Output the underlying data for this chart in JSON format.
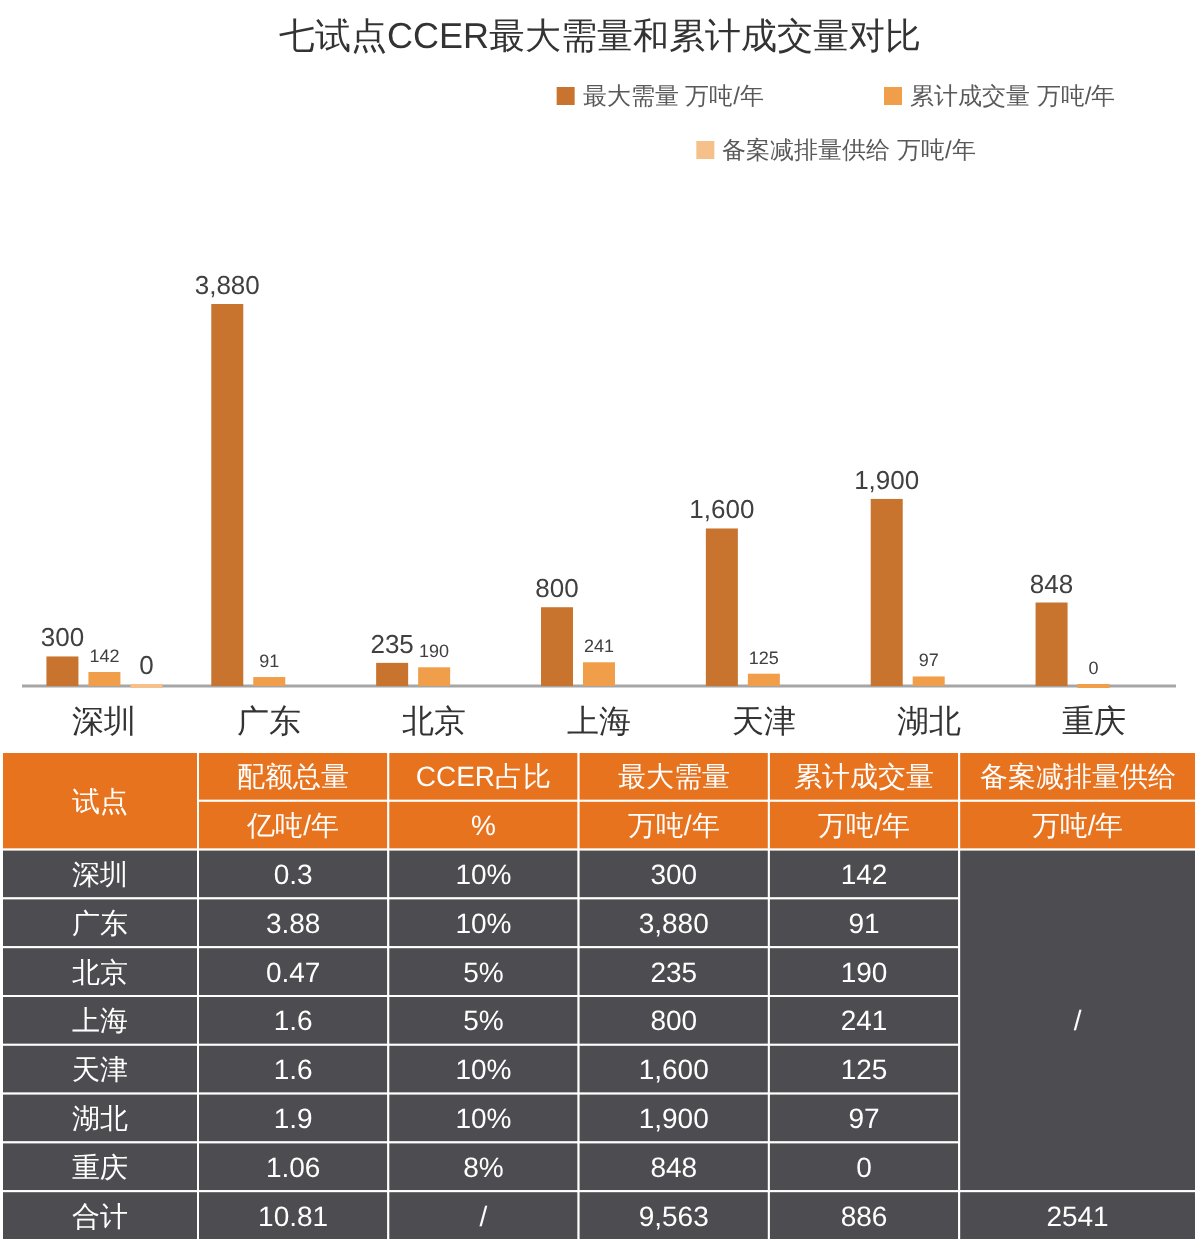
{
  "chart_data": [
    {
      "type": "bar",
      "title": "七试点CCER最大需量和累计成交量对比",
      "categories": [
        "深圳",
        "广东",
        "北京",
        "上海",
        "天津",
        "湖北",
        "重庆"
      ],
      "legend": "top right",
      "series": [
        {
          "name": "最大需量 万吨/年",
          "color": "#c8742e",
          "values": [
            300,
            3880,
            235,
            800,
            1600,
            1900,
            848
          ],
          "value_labels": [
            "300",
            "3,880",
            "235",
            "800",
            "1,600",
            "1,900",
            "848"
          ]
        },
        {
          "name": "累计成交量 万吨/年",
          "color": "#f09e4a",
          "values": [
            142,
            91,
            190,
            241,
            125,
            97,
            0
          ],
          "value_labels": [
            "142",
            "91",
            "190",
            "241",
            "125",
            "97",
            "0"
          ]
        },
        {
          "name": "备案减排量供给 万吨/年",
          "color": "#f5c08a",
          "values": [
            0,
            null,
            null,
            null,
            null,
            null,
            null
          ],
          "value_labels": [
            "0",
            null,
            null,
            null,
            null,
            null,
            null
          ]
        }
      ]
    },
    {
      "type": "other",
      "categories": [
        "试点",
        null,
        "深圳",
        "广东",
        "北京",
        "上海",
        "天津",
        "湖北",
        "重庆",
        "合计"
      ],
      "series": [
        {
          "values": [
            null,
            null,
            0.3,
            3.88,
            0.47,
            1.6,
            1.6,
            1.9,
            1.06,
            10.81
          ],
          "value_labels": [
            "配额总量",
            "亿吨/年",
            "0.3",
            "3.88",
            "0.47",
            "1.6",
            "1.6",
            "1.9",
            "1.06",
            "10.81"
          ]
        },
        {
          "values": [
            null,
            null,
            10,
            10,
            5,
            5,
            10,
            10,
            8,
            null
          ],
          "value_labels": [
            "CCER占比",
            "%",
            "10%",
            "10%",
            "5%",
            "5%",
            "10%",
            "10%",
            "8%",
            "/"
          ]
        },
        {
          "values": [
            null,
            null,
            300,
            3880,
            235,
            800,
            1600,
            1900,
            848,
            9563
          ],
          "value_labels": [
            "最大需量",
            "万吨/年",
            "300",
            "3,880",
            "235",
            "800",
            "1,600",
            "1,900",
            "848",
            "9,563"
          ]
        },
        {
          "values": [
            null,
            null,
            142,
            91,
            190,
            241,
            125,
            97,
            0,
            886
          ],
          "value_labels": [
            "累计成交量",
            "万吨/年",
            "142",
            "91",
            "190",
            "241",
            "125",
            "97",
            "0",
            "886"
          ]
        },
        {
          "values": [
            null,
            null,
            null,
            null,
            null,
            null,
            null,
            null,
            null,
            2541
          ],
          "value_labels": [
            "备案减排量供给",
            "万吨/年",
            "/",
            null,
            null,
            null,
            null,
            null,
            null,
            "2541"
          ]
        }
      ]
    }
  ]
}
